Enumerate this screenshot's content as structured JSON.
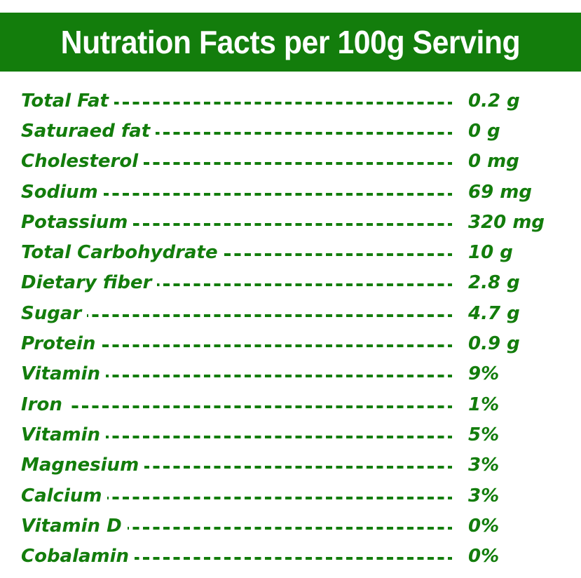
{
  "title": "Nutration Facts per 100g Serving",
  "colors": {
    "brand_green": "#137d0c",
    "background": "#ffffff",
    "title_text": "#ffffff"
  },
  "nutrients": [
    {
      "label": "Total Fat",
      "value": "0.2 g"
    },
    {
      "label": "Saturaed fat",
      "value": "0 g"
    },
    {
      "label": "Cholesterol",
      "value": "0 mg"
    },
    {
      "label": "Sodium",
      "value": "69 mg"
    },
    {
      "label": "Potassium",
      "value": "320 mg"
    },
    {
      "label": "Total Carbohydrate",
      "value": "10 g"
    },
    {
      "label": "Dietary fiber",
      "value": "2.8 g"
    },
    {
      "label": "Sugar",
      "value": "4.7 g"
    },
    {
      "label": "Protein",
      "value": "0.9 g"
    },
    {
      "label": "Vitamin",
      "value": "9%"
    },
    {
      "label": "Iron",
      "value": "1%"
    },
    {
      "label": "Vitamin",
      "value": "5%"
    },
    {
      "label": "Magnesium",
      "value": "3%"
    },
    {
      "label": "Calcium",
      "value": "3%"
    },
    {
      "label": "Vitamin D",
      "value": "0%"
    },
    {
      "label": "Cobalamin",
      "value": "0%"
    }
  ]
}
